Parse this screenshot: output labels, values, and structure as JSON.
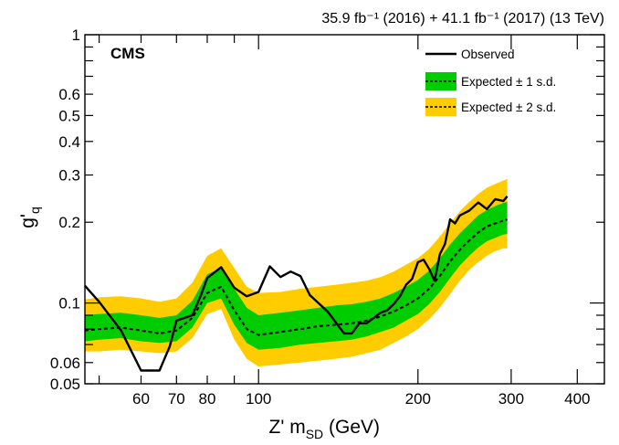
{
  "chart_data": {
    "type": "line",
    "x_scale": "log",
    "y_scale": "log",
    "xlim": [
      47,
      450
    ],
    "ylim": [
      0.05,
      1
    ],
    "x_ticks": [
      60,
      70,
      80,
      100,
      200,
      300,
      400
    ],
    "x_tick_labels": [
      "60",
      "70",
      "80",
      "100",
      "200",
      "300",
      "400"
    ],
    "y_ticks": [
      0.05,
      0.06,
      0.1,
      0.2,
      0.3,
      0.4,
      0.5,
      0.6,
      1
    ],
    "y_tick_labels": [
      "0.05",
      "0.06",
      "0.1",
      "0.2",
      "0.3",
      "0.4",
      "0.5",
      "0.6",
      "1"
    ],
    "lumi_label": "35.9 fb⁻¹ (2016) + 41.1 fb⁻¹ (2017) (13 TeV)",
    "experiment_label": "CMS",
    "xlabel": {
      "main": "Z' m",
      "sub": "SD",
      "unit": " (GeV)"
    },
    "ylabel": {
      "main": "g'",
      "sub": "q"
    },
    "legend_position": "top-right",
    "legend": [
      {
        "label": "Observed",
        "style": "solid-line"
      },
      {
        "label": "Expected ± 1 s.d.",
        "style": "dashed-line-green-band"
      },
      {
        "label": "Expected ± 2 s.d.",
        "style": "dashed-line-yellow-band"
      }
    ],
    "colors": {
      "band_1sd": "#00cc00",
      "band_2sd": "#ffcc00",
      "line": "#000000"
    },
    "series": [
      {
        "name": "Observed",
        "x": [
          47,
          50,
          55,
          58,
          60,
          62,
          65,
          68,
          70,
          75,
          78,
          80,
          85,
          90,
          95,
          100,
          105,
          110,
          115,
          120,
          125,
          135,
          145,
          150,
          155,
          160,
          165,
          170,
          175,
          180,
          185,
          190,
          195,
          200,
          205,
          210,
          215,
          220,
          225,
          230,
          235,
          240,
          250,
          260,
          270,
          280,
          290,
          295
        ],
        "y": [
          0.116,
          0.101,
          0.079,
          0.064,
          0.056,
          0.056,
          0.056,
          0.069,
          0.086,
          0.09,
          0.108,
          0.124,
          0.136,
          0.114,
          0.106,
          0.11,
          0.137,
          0.125,
          0.131,
          0.126,
          0.107,
          0.093,
          0.077,
          0.077,
          0.084,
          0.084,
          0.088,
          0.092,
          0.094,
          0.099,
          0.106,
          0.117,
          0.123,
          0.142,
          0.145,
          0.134,
          0.121,
          0.152,
          0.166,
          0.205,
          0.198,
          0.212,
          0.221,
          0.237,
          0.224,
          0.244,
          0.24,
          0.25
        ]
      },
      {
        "name": "Expected",
        "x": [
          47,
          50,
          55,
          60,
          65,
          70,
          75,
          80,
          85,
          90,
          95,
          100,
          110,
          120,
          130,
          140,
          150,
          160,
          170,
          180,
          190,
          200,
          210,
          220,
          230,
          240,
          250,
          260,
          270,
          280,
          290,
          295
        ],
        "y": [
          0.079,
          0.08,
          0.081,
          0.079,
          0.077,
          0.079,
          0.088,
          0.109,
          0.115,
          0.094,
          0.08,
          0.076,
          0.078,
          0.08,
          0.082,
          0.083,
          0.084,
          0.086,
          0.089,
          0.093,
          0.098,
          0.104,
          0.113,
          0.126,
          0.143,
          0.158,
          0.171,
          0.183,
          0.193,
          0.198,
          0.203,
          0.205
        ]
      }
    ],
    "bands": [
      {
        "name": "Expected ± 2 s.d.",
        "x": [
          47,
          50,
          55,
          60,
          65,
          70,
          75,
          80,
          85,
          90,
          95,
          100,
          110,
          120,
          130,
          140,
          150,
          160,
          170,
          180,
          190,
          200,
          210,
          220,
          230,
          240,
          250,
          260,
          270,
          280,
          290,
          295
        ],
        "low": [
          0.066,
          0.066,
          0.067,
          0.066,
          0.065,
          0.066,
          0.074,
          0.091,
          0.095,
          0.073,
          0.062,
          0.058,
          0.059,
          0.06,
          0.061,
          0.062,
          0.063,
          0.065,
          0.067,
          0.071,
          0.075,
          0.08,
          0.087,
          0.096,
          0.108,
          0.121,
          0.133,
          0.142,
          0.15,
          0.156,
          0.16,
          0.16
        ],
        "high": [
          0.103,
          0.105,
          0.106,
          0.104,
          0.101,
          0.104,
          0.119,
          0.15,
          0.16,
          0.135,
          0.115,
          0.109,
          0.11,
          0.113,
          0.115,
          0.117,
          0.119,
          0.121,
          0.125,
          0.131,
          0.139,
          0.147,
          0.159,
          0.177,
          0.198,
          0.22,
          0.238,
          0.255,
          0.269,
          0.278,
          0.286,
          0.29
        ]
      },
      {
        "name": "Expected ± 1 s.d.",
        "x": [
          47,
          50,
          55,
          60,
          65,
          70,
          75,
          80,
          85,
          90,
          95,
          100,
          110,
          120,
          130,
          140,
          150,
          160,
          170,
          180,
          190,
          200,
          210,
          220,
          230,
          240,
          250,
          260,
          270,
          280,
          290,
          295
        ],
        "low": [
          0.072,
          0.073,
          0.074,
          0.072,
          0.071,
          0.072,
          0.081,
          0.1,
          0.104,
          0.083,
          0.071,
          0.067,
          0.068,
          0.07,
          0.071,
          0.072,
          0.073,
          0.075,
          0.078,
          0.081,
          0.086,
          0.091,
          0.099,
          0.11,
          0.124,
          0.138,
          0.15,
          0.161,
          0.17,
          0.175,
          0.18,
          0.181
        ],
        "high": [
          0.09,
          0.091,
          0.092,
          0.09,
          0.088,
          0.09,
          0.102,
          0.128,
          0.135,
          0.113,
          0.096,
          0.09,
          0.092,
          0.094,
          0.096,
          0.098,
          0.099,
          0.101,
          0.104,
          0.109,
          0.115,
          0.122,
          0.132,
          0.147,
          0.165,
          0.182,
          0.197,
          0.212,
          0.222,
          0.23,
          0.236,
          0.238
        ]
      }
    ]
  }
}
